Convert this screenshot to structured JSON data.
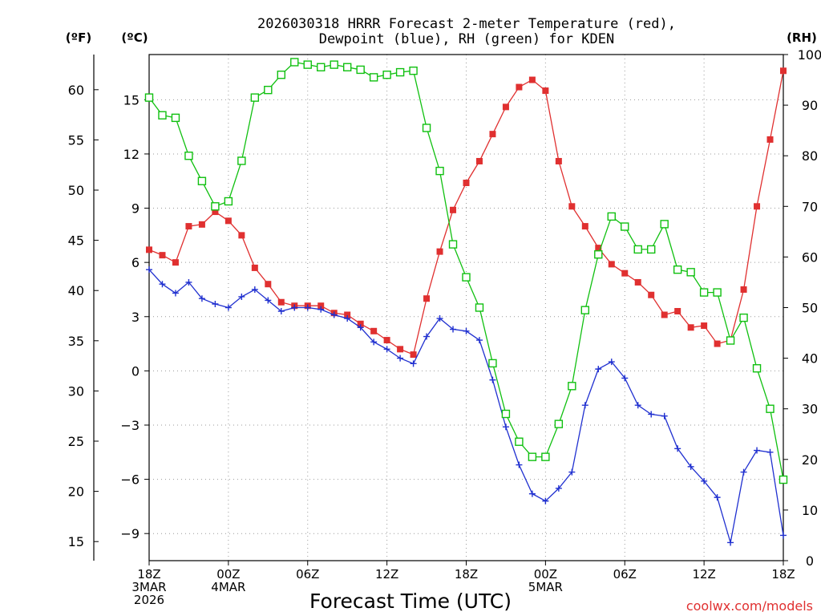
{
  "chart_data": {
    "type": "line",
    "title": "2026030318 HRRR Forecast 2-meter Temperature (red),",
    "subtitle": "Dewpoint (blue), RH (green) for KDEN",
    "xlabel": "Forecast Time (UTC)",
    "left_unit_f": "(ºF)",
    "left_unit_c": "(ºC)",
    "right_unit": "(RH)",
    "watermark": "coolwx.com/models",
    "x_range": [
      0,
      48
    ],
    "c_range": [
      -10.5,
      17.5
    ],
    "f_range": [
      12,
      64
    ],
    "rh_range": [
      0,
      100
    ],
    "x_ticks": [
      {
        "x": 0,
        "lines": [
          "18Z",
          "3MAR",
          "2026"
        ]
      },
      {
        "x": 6,
        "lines": [
          "00Z",
          "4MAR"
        ]
      },
      {
        "x": 12,
        "lines": [
          "06Z"
        ]
      },
      {
        "x": 18,
        "lines": [
          "12Z"
        ]
      },
      {
        "x": 24,
        "lines": [
          "18Z"
        ]
      },
      {
        "x": 30,
        "lines": [
          "00Z",
          "5MAR"
        ]
      },
      {
        "x": 36,
        "lines": [
          "06Z"
        ]
      },
      {
        "x": 42,
        "lines": [
          "12Z"
        ]
      },
      {
        "x": 48,
        "lines": [
          "18Z"
        ]
      }
    ],
    "c_ticks": [
      15,
      12,
      9,
      6,
      3,
      0,
      -3,
      -6,
      -9
    ],
    "c_tick_labels": [
      "15",
      "12",
      "9",
      "6",
      "3",
      "0",
      "−3",
      "−6",
      "−9"
    ],
    "f_ticks": [
      60,
      55,
      50,
      45,
      40,
      35,
      30,
      25,
      20,
      15
    ],
    "rh_ticks": [
      100,
      90,
      80,
      70,
      60,
      50,
      40,
      30,
      20,
      10,
      0
    ],
    "series": [
      {
        "name": "Temperature",
        "color": "#e03030",
        "marker": "filled-square",
        "unit": "C",
        "values": [
          6.7,
          6.4,
          6.0,
          8.0,
          8.1,
          8.8,
          8.3,
          7.5,
          5.7,
          4.8,
          3.8,
          3.6,
          3.6,
          3.6,
          3.2,
          3.1,
          2.6,
          2.2,
          1.7,
          1.2,
          0.9,
          4.0,
          6.6,
          8.9,
          10.4,
          11.6,
          13.1,
          14.6,
          15.7,
          16.1,
          15.5,
          11.6,
          9.1,
          8.0,
          6.8,
          5.9,
          5.4,
          4.9,
          4.2,
          3.1,
          3.3,
          2.4,
          2.5,
          1.5,
          1.7,
          4.5,
          9.1,
          12.8,
          16.6
        ]
      },
      {
        "name": "Dewpoint",
        "color": "#2030d0",
        "marker": "plus",
        "unit": "C",
        "values": [
          5.6,
          4.8,
          4.3,
          4.9,
          4.0,
          3.7,
          3.5,
          4.1,
          4.5,
          3.9,
          3.3,
          3.5,
          3.5,
          3.4,
          3.1,
          2.9,
          2.4,
          1.6,
          1.2,
          0.7,
          0.4,
          1.9,
          2.9,
          2.3,
          2.2,
          1.7,
          -0.5,
          -3.1,
          -5.2,
          -6.8,
          -7.2,
          -6.5,
          -5.6,
          -1.9,
          0.1,
          0.5,
          -0.4,
          -1.9,
          -2.4,
          -2.5,
          -4.3,
          -5.3,
          -6.1,
          -7.0,
          -9.5,
          -5.6,
          -4.4,
          -4.5,
          -9.1
        ]
      },
      {
        "name": "RH",
        "color": "#10c010",
        "marker": "open-square",
        "unit": "%",
        "values": [
          91.5,
          88.0,
          87.5,
          80.0,
          75.0,
          70.0,
          71.0,
          79.0,
          91.5,
          93.0,
          96.0,
          98.5,
          98.0,
          97.5,
          98.0,
          97.5,
          97.0,
          95.5,
          96.0,
          96.5,
          96.8,
          85.5,
          77.0,
          62.5,
          56.0,
          50.0,
          39.0,
          29.0,
          23.5,
          20.5,
          20.5,
          27.0,
          34.5,
          49.5,
          60.5,
          68.0,
          66.0,
          61.5,
          61.5,
          66.5,
          57.5,
          57.0,
          53.0,
          53.0,
          43.5,
          48.0,
          38.0,
          30.0,
          16.0
        ]
      }
    ]
  }
}
